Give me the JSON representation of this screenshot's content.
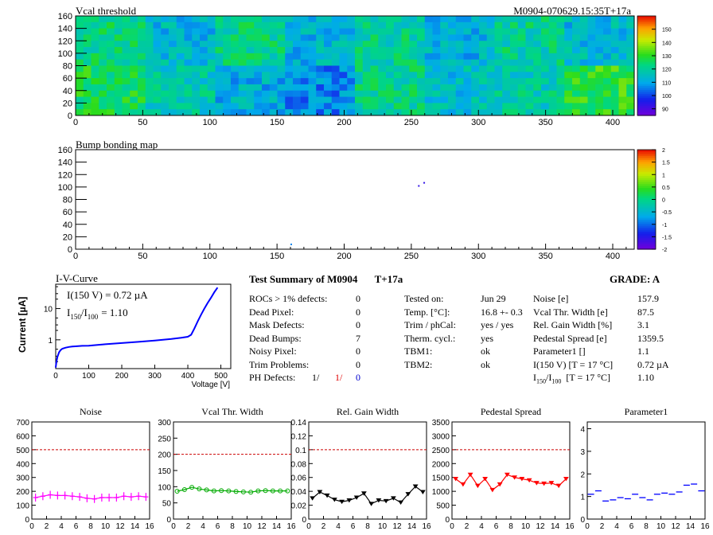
{
  "vcal_map": {
    "title": "Vcal threshold",
    "module_label": "M0904-070629.15:35T+17a",
    "xticks": [
      0,
      50,
      100,
      150,
      200,
      250,
      300,
      350,
      400
    ],
    "yticks": [
      0,
      20,
      40,
      60,
      80,
      100,
      120,
      140,
      160
    ],
    "scale_ticks": [
      90,
      100,
      110,
      120,
      130,
      140,
      150
    ]
  },
  "bump_map": {
    "title": "Bump bonding map",
    "xticks": [
      0,
      50,
      100,
      150,
      200,
      250,
      300,
      350,
      400
    ],
    "yticks": [
      0,
      20,
      40,
      60,
      80,
      100,
      120,
      140,
      160
    ],
    "scale_ticks": [
      -2,
      -1.5,
      -1,
      -0.5,
      0,
      0.5,
      1,
      1.5,
      2
    ]
  },
  "iv_curve": {
    "title": "I-V-Curve",
    "ylabel": "Current [µA]",
    "xlabel": "Voltage [V]",
    "text_line1": "I(150 V) = 0.72 µA",
    "text_line2_main": "I",
    "text_line2_sub1": "150",
    "text_line2_mid": "/I",
    "text_line2_sub2": "100",
    "text_line2_val": "=  1.10",
    "xticks": [
      "0",
      "100",
      "200",
      "300",
      "400",
      "500"
    ],
    "yticks": [
      "1",
      "10"
    ]
  },
  "summary": {
    "title": "Test Summary of M0904",
    "temp_tag": "T+17a",
    "grade": "GRADE:  A",
    "left_rows": [
      {
        "label": "ROCs > 1% defects:",
        "value": "0"
      },
      {
        "label": "Dead Pixel:",
        "value": "0"
      },
      {
        "label": "Mask Defects:",
        "value": "0"
      },
      {
        "label": "Dead Bumps:",
        "value": "7"
      },
      {
        "label": "Noisy Pixel:",
        "value": "0"
      },
      {
        "label": "Trim Problems:",
        "value": "0"
      }
    ],
    "ph_label": "PH Defects:",
    "ph_v1": "1/",
    "ph_v2": "1/",
    "ph_v3": "0",
    "mid_rows": [
      {
        "label": "Tested on:",
        "value": "Jun 29"
      },
      {
        "label": "Temp. [°C]:",
        "value": "16.8 +- 0.3"
      },
      {
        "label": "Trim / phCal:",
        "value": "yes / yes"
      },
      {
        "label": "Therm. cycl.:",
        "value": "yes"
      },
      {
        "label": "TBM1:",
        "value": "ok"
      },
      {
        "label": "TBM2:",
        "value": "ok"
      }
    ],
    "right_rows": [
      {
        "label": "Noise [e]",
        "value": "157.9"
      },
      {
        "label": "Vcal Thr. Width [e]",
        "value": "87.5"
      },
      {
        "label": "Rel. Gain Width [%]",
        "value": "3.1"
      },
      {
        "label": "Pedestal Spread [e]",
        "value": "1359.5"
      },
      {
        "label": "Parameter1 []",
        "value": "1.1"
      },
      {
        "label": "I(150 V)  [T = 17 °C]",
        "value": "0.72 µA"
      }
    ],
    "ratio_main": "I",
    "ratio_sub1": "150",
    "ratio_mid": "/I",
    "ratio_sub2": "100",
    "ratio_suffix": "  [T = 17 °C]",
    "ratio_value": "1.10"
  },
  "chart_data": [
    {
      "type": "heatmap",
      "title": "Vcal threshold",
      "x_range": [
        0,
        416
      ],
      "y_range": [
        0,
        160
      ],
      "z_range": [
        85,
        160
      ],
      "roc_grid": {
        "rows": 2,
        "cols": 8
      },
      "roc_mean_values": [
        [
          122,
          113,
          121,
          112,
          120,
          112,
          120,
          113
        ],
        [
          126,
          117,
          111,
          106,
          121,
          114,
          118,
          129
        ]
      ]
    },
    {
      "type": "heatmap",
      "title": "Bump bonding map",
      "x_range": [
        0,
        416
      ],
      "y_range": [
        0,
        160
      ],
      "z_range": [
        -2,
        2
      ],
      "points": [
        {
          "x": 255,
          "y": 103,
          "v": -2
        },
        {
          "x": 259,
          "y": 108,
          "v": -2
        },
        {
          "x": 160,
          "y": 9,
          "v": -1.3
        }
      ]
    },
    {
      "type": "line",
      "title": "I-V-Curve",
      "xlabel": "Voltage [V]",
      "ylabel": "Current [µA]",
      "y_scale": "log",
      "xlim": [
        0,
        530
      ],
      "ylim": [
        0.12,
        60
      ],
      "x": [
        0,
        2,
        5,
        10,
        15,
        20,
        30,
        40,
        50,
        60,
        80,
        100,
        150,
        200,
        250,
        300,
        350,
        380,
        400,
        410,
        420,
        430,
        440,
        450,
        460,
        470,
        480,
        490
      ],
      "y": [
        0.13,
        0.19,
        0.28,
        0.4,
        0.47,
        0.52,
        0.56,
        0.59,
        0.61,
        0.62,
        0.64,
        0.65,
        0.72,
        0.79,
        0.86,
        0.95,
        1.07,
        1.17,
        1.25,
        1.45,
        2.3,
        3.9,
        6.3,
        10,
        15,
        22,
        33,
        47
      ]
    },
    {
      "type": "line",
      "title": "Noise",
      "x": [
        0,
        1,
        2,
        3,
        4,
        5,
        6,
        7,
        8,
        9,
        10,
        11,
        12,
        13,
        14,
        15
      ],
      "y": [
        155,
        165,
        175,
        170,
        170,
        165,
        160,
        150,
        145,
        155,
        155,
        155,
        165,
        160,
        165,
        160
      ],
      "xlim": [
        0,
        16
      ],
      "ylim": [
        0,
        700
      ],
      "threshold": 500,
      "color": "#ff00ff"
    },
    {
      "type": "line",
      "title": "Vcal Thr. Width",
      "x": [
        0,
        1,
        2,
        3,
        4,
        5,
        6,
        7,
        8,
        9,
        10,
        11,
        12,
        13,
        14,
        15
      ],
      "y": [
        86,
        91,
        98,
        93,
        90,
        87,
        88,
        87,
        85,
        84,
        83,
        87,
        88,
        87,
        87,
        87
      ],
      "xlim": [
        0,
        16
      ],
      "ylim": [
        0,
        300
      ],
      "threshold": 200,
      "color": "#00aa00"
    },
    {
      "type": "line",
      "title": "Rel. Gain Width",
      "x": [
        0,
        1,
        2,
        3,
        4,
        5,
        6,
        7,
        8,
        9,
        10,
        11,
        12,
        13,
        14,
        15
      ],
      "y": [
        0.03,
        0.039,
        0.034,
        0.028,
        0.025,
        0.027,
        0.031,
        0.037,
        0.022,
        0.027,
        0.026,
        0.03,
        0.024,
        0.036,
        0.047,
        0.039
      ],
      "xlim": [
        0,
        16
      ],
      "ylim": [
        0,
        0.14
      ],
      "threshold": 0.1,
      "color": "#000000"
    },
    {
      "type": "line",
      "title": "Pedestal Spread",
      "x": [
        0,
        1,
        2,
        3,
        4,
        5,
        6,
        7,
        8,
        9,
        10,
        11,
        12,
        13,
        14,
        15
      ],
      "y": [
        1450,
        1250,
        1600,
        1200,
        1450,
        1050,
        1250,
        1600,
        1500,
        1450,
        1400,
        1300,
        1280,
        1300,
        1200,
        1450
      ],
      "xlim": [
        0,
        16
      ],
      "ylim": [
        0,
        3500
      ],
      "threshold": 2500,
      "color": "#ff0000"
    },
    {
      "type": "scatter",
      "title": "Parameter1",
      "x": [
        0,
        1,
        2,
        3,
        4,
        5,
        6,
        7,
        8,
        9,
        10,
        11,
        12,
        13,
        14,
        15
      ],
      "y": [
        1.1,
        1.25,
        0.8,
        0.85,
        0.95,
        0.9,
        1.1,
        0.95,
        0.85,
        1.1,
        1.15,
        1.1,
        1.2,
        1.5,
        1.55,
        1.25
      ],
      "xlim": [
        0,
        16
      ],
      "ylim": [
        0,
        4.3
      ],
      "color": "#0000ff"
    }
  ]
}
